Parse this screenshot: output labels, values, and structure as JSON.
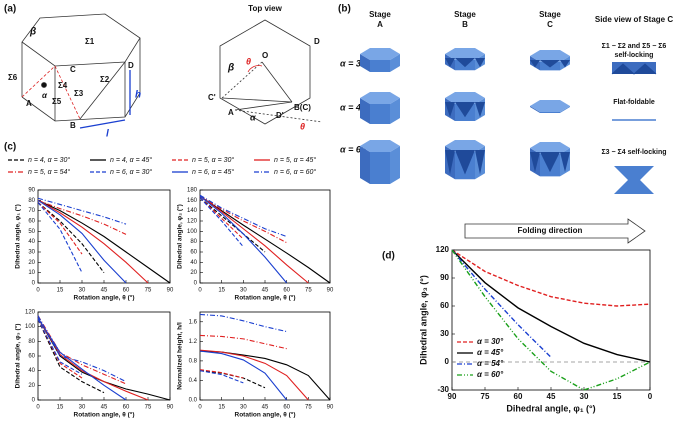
{
  "figure": {
    "a": {
      "label": "(a)",
      "top_view": "Top view",
      "prism_labels": [
        "Σ1",
        "Σ2",
        "Σ3",
        "Σ4",
        "Σ5",
        "Σ6",
        "A",
        "B",
        "C",
        "D",
        "α",
        "β",
        "h",
        "l"
      ],
      "top_labels": [
        "O",
        "D",
        "C'",
        "A",
        "B(C)",
        "D'",
        "θ",
        "θ",
        "α",
        "β"
      ]
    },
    "b": {
      "label": "(b)",
      "columns": [
        [
          "Stage",
          "A"
        ],
        [
          "Stage",
          "B"
        ],
        [
          "Stage",
          "C"
        ]
      ],
      "side_view": "Side view of Stage C",
      "rows": [
        {
          "alpha": "α = 30°",
          "note": [
            "Σ1 − Σ2 and Σ5 − Σ6",
            "self-locking"
          ]
        },
        {
          "alpha": "α = 45°",
          "note": [
            "Flat-foldable"
          ]
        },
        {
          "alpha": "α = 60°",
          "note": [
            "Σ3 − Σ4 self-locking"
          ]
        }
      ]
    },
    "c": {
      "label": "(c)"
    },
    "d": {
      "label": "(d)",
      "arrow": "Folding direction"
    }
  },
  "chart_data": [
    {
      "type": "line",
      "x_label": "Rotation angle, θ (°)",
      "y_label": "Dihedral angle, φ₁ (°)",
      "x": [
        0,
        15,
        30,
        45,
        60,
        75,
        90
      ],
      "xlim": [
        0,
        90
      ],
      "xticks": [
        0,
        15,
        30,
        45,
        60,
        75,
        90
      ],
      "ylim": [
        0,
        90
      ],
      "yticks": [
        0,
        10,
        20,
        30,
        40,
        50,
        60,
        70,
        80,
        90
      ],
      "series": [
        {
          "name": "n = 4, α = 30°",
          "color": "#000000",
          "style": "dashed",
          "values": [
            78,
            60,
            38,
            10,
            null,
            null,
            null
          ]
        },
        {
          "name": "n = 4, α = 45°",
          "color": "#000000",
          "style": "solid",
          "values": [
            80,
            70,
            58,
            45,
            30,
            15,
            0
          ]
        },
        {
          "name": "n = 5, α = 30°",
          "color": "#e02020",
          "style": "dashed",
          "values": [
            78,
            58,
            28,
            null,
            null,
            null,
            null
          ]
        },
        {
          "name": "n = 5, α = 45°",
          "color": "#e02020",
          "style": "solid",
          "values": [
            80,
            68,
            54,
            38,
            20,
            0,
            null
          ]
        },
        {
          "name": "n = 5, α = 54°",
          "color": "#e02020",
          "style": "dashdot",
          "values": [
            80,
            72,
            65,
            57,
            47,
            null,
            null
          ]
        },
        {
          "name": "n = 6, α = 30°",
          "color": "#1a3fd0",
          "style": "dashed",
          "values": [
            78,
            52,
            10,
            null,
            null,
            null,
            null
          ]
        },
        {
          "name": "n = 6, α = 45°",
          "color": "#1a3fd0",
          "style": "solid",
          "values": [
            80,
            66,
            48,
            22,
            0,
            null,
            null
          ]
        },
        {
          "name": "n = 6, α = 60°",
          "color": "#1a3fd0",
          "style": "dashdot",
          "values": [
            82,
            76,
            70,
            64,
            57,
            null,
            null
          ]
        }
      ]
    },
    {
      "type": "line",
      "x_label": "Rotation angle, θ (°)",
      "y_label": "Dihedral angle, φ₂ (°)",
      "x": [
        0,
        15,
        30,
        45,
        60,
        75,
        90
      ],
      "xlim": [
        0,
        90
      ],
      "xticks": [
        0,
        15,
        30,
        45,
        60,
        75,
        90
      ],
      "ylim": [
        0,
        180
      ],
      "yticks": [
        0,
        20,
        40,
        60,
        80,
        100,
        120,
        140,
        160,
        180
      ],
      "series": [
        {
          "color": "#000000",
          "style": "dashed",
          "values": [
            165,
            130,
            95,
            60,
            null,
            null,
            null
          ]
        },
        {
          "color": "#000000",
          "style": "solid",
          "values": [
            168,
            140,
            112,
            85,
            58,
            30,
            0
          ]
        },
        {
          "color": "#e02020",
          "style": "dashed",
          "values": [
            165,
            125,
            85,
            null,
            null,
            null,
            null
          ]
        },
        {
          "color": "#e02020",
          "style": "solid",
          "values": [
            168,
            138,
            105,
            72,
            35,
            0,
            null
          ]
        },
        {
          "color": "#e02020",
          "style": "dashdot",
          "values": [
            168,
            143,
            120,
            100,
            78,
            null,
            null
          ]
        },
        {
          "color": "#1a3fd0",
          "style": "dashed",
          "values": [
            165,
            120,
            70,
            null,
            null,
            null,
            null
          ]
        },
        {
          "color": "#1a3fd0",
          "style": "solid",
          "values": [
            168,
            135,
            95,
            50,
            0,
            null,
            null
          ]
        },
        {
          "color": "#1a3fd0",
          "style": "dashdot",
          "values": [
            170,
            145,
            125,
            105,
            90,
            null,
            null
          ]
        }
      ]
    },
    {
      "type": "line",
      "x_label": "Rotation angle, θ (°)",
      "y_label": "Dihedral angle, φ₃ (°)",
      "x": [
        0,
        15,
        30,
        45,
        60,
        75,
        90
      ],
      "xlim": [
        0,
        90
      ],
      "xticks": [
        0,
        15,
        30,
        45,
        60,
        75,
        90
      ],
      "ylim": [
        0,
        120
      ],
      "yticks": [
        0,
        20,
        40,
        60,
        80,
        100,
        120
      ],
      "series": [
        {
          "color": "#000000",
          "style": "dashed",
          "values": [
            110,
            45,
            25,
            10,
            null,
            null,
            null
          ]
        },
        {
          "color": "#000000",
          "style": "solid",
          "values": [
            112,
            60,
            38,
            25,
            15,
            8,
            0
          ]
        },
        {
          "color": "#e02020",
          "style": "dashed",
          "values": [
            110,
            50,
            30,
            null,
            null,
            null,
            null
          ]
        },
        {
          "color": "#e02020",
          "style": "solid",
          "values": [
            112,
            62,
            40,
            25,
            12,
            0,
            null
          ]
        },
        {
          "color": "#e02020",
          "style": "dashdot",
          "values": [
            115,
            65,
            48,
            35,
            22,
            null,
            null
          ]
        },
        {
          "color": "#1a3fd0",
          "style": "dashed",
          "values": [
            110,
            52,
            35,
            null,
            null,
            null,
            null
          ]
        },
        {
          "color": "#1a3fd0",
          "style": "solid",
          "values": [
            112,
            65,
            42,
            20,
            0,
            null,
            null
          ]
        },
        {
          "color": "#1a3fd0",
          "style": "dashdot",
          "values": [
            115,
            60,
            52,
            40,
            25,
            null,
            null
          ]
        }
      ]
    },
    {
      "type": "line",
      "x_label": "Rotation angle, θ (°)",
      "y_label": "Normalized height, h/l",
      "x": [
        0,
        15,
        30,
        45,
        60,
        75,
        90
      ],
      "xlim": [
        0,
        90
      ],
      "xticks": [
        0,
        15,
        30,
        45,
        60,
        75,
        90
      ],
      "ylim": [
        0,
        1.8
      ],
      "yticks": [
        {
          "value": 0,
          "label": "0.0"
        },
        0.4,
        0.8,
        1.2,
        1.6
      ],
      "series": [
        {
          "color": "#000000",
          "style": "dashed",
          "values": [
            0.6,
            0.55,
            0.45,
            0.25,
            null,
            null,
            null
          ]
        },
        {
          "color": "#000000",
          "style": "solid",
          "values": [
            1.0,
            0.98,
            0.92,
            0.85,
            0.72,
            0.5,
            0
          ]
        },
        {
          "color": "#e02020",
          "style": "dashed",
          "values": [
            0.62,
            0.56,
            0.45,
            null,
            null,
            null,
            null
          ]
        },
        {
          "color": "#e02020",
          "style": "solid",
          "values": [
            1.02,
            0.98,
            0.9,
            0.75,
            0.5,
            0,
            null
          ]
        },
        {
          "color": "#e02020",
          "style": "dashdot",
          "values": [
            1.32,
            1.3,
            1.25,
            1.15,
            1.05,
            null,
            null
          ]
        },
        {
          "color": "#1a3fd0",
          "style": "dashed",
          "values": [
            0.6,
            0.52,
            0.35,
            null,
            null,
            null,
            null
          ]
        },
        {
          "color": "#1a3fd0",
          "style": "solid",
          "values": [
            1.0,
            0.95,
            0.82,
            0.55,
            0,
            null,
            null
          ]
        },
        {
          "color": "#1a3fd0",
          "style": "dashdot",
          "values": [
            1.75,
            1.72,
            1.62,
            1.5,
            1.4,
            null,
            null
          ]
        }
      ]
    },
    {
      "type": "line",
      "x_label": "Dihedral angle, φ₁ (°)",
      "y_label": "Dihedral angle, φ₃ (°)",
      "x": [
        90,
        75,
        60,
        45,
        30,
        15,
        0
      ],
      "xlim": [
        90,
        0
      ],
      "xticks": [
        90,
        75,
        60,
        45,
        30,
        15,
        0
      ],
      "ylim": [
        -30,
        120
      ],
      "yticks": [
        -30,
        0,
        30,
        60,
        90,
        120
      ],
      "hline": 0,
      "series": [
        {
          "name": "α = 30°",
          "color": "#e02020",
          "style": "dashed",
          "values": [
            120,
            97,
            82,
            70,
            63,
            60,
            62
          ]
        },
        {
          "name": "α = 45°",
          "color": "#000000",
          "style": "solid",
          "values": [
            120,
            85,
            58,
            38,
            20,
            8,
            0
          ]
        },
        {
          "name": "α = 54°",
          "color": "#1a3fd0",
          "style": "dashdot",
          "values": [
            120,
            78,
            40,
            5,
            null,
            null,
            null
          ]
        },
        {
          "name": "α = 60°",
          "color": "#1aa01a",
          "style": "dashdotdot",
          "values": [
            120,
            70,
            25,
            -10,
            -30,
            -18,
            0
          ]
        }
      ]
    }
  ]
}
